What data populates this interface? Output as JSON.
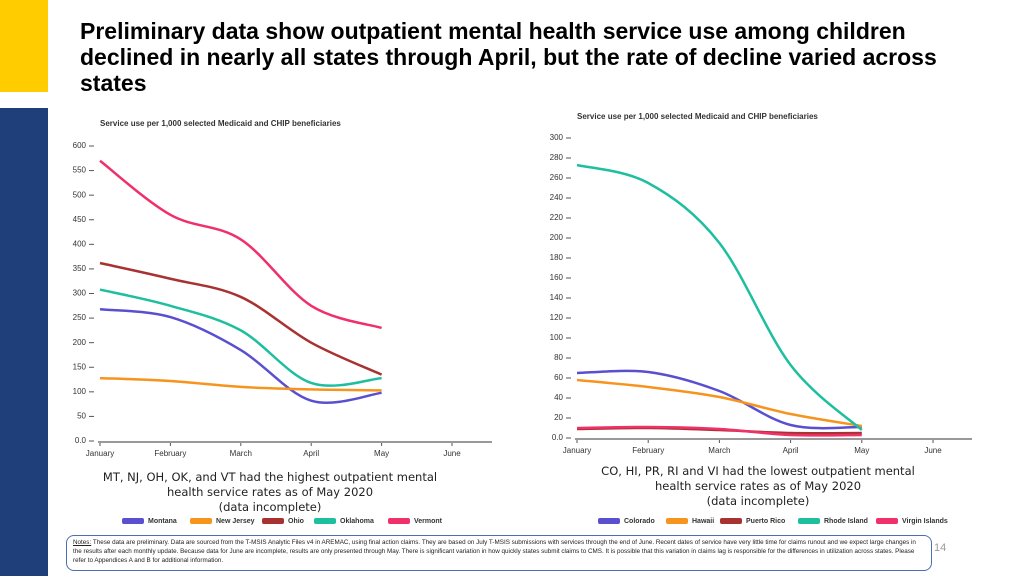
{
  "title": "Preliminary data show outpatient mental health service use among children declined in nearly all states through April, but the rate of decline varied across states",
  "notes_label": "Notes:",
  "notes": "These data are preliminary. Data are sourced from the T-MSIS Analytic Files v4 in AREMAC, using final action claims. They are based on July T-MSIS submissions with services through the end of June. Recent dates of service have very little time for claims runout and we expect large changes in the results after each monthly update. Because data for June are incomplete, results are only presented through May. There is significant variation in how quickly states submit claims to CMS. It is possible that this variation in claims lag is responsible for the differences in utilization across states. Please refer to Appendices A and B for additional information.",
  "page_number": "14",
  "chart_data": [
    {
      "type": "line",
      "title": "Service use per 1,000 selected Medicaid and CHIP beneficiaries",
      "caption": [
        "MT, NJ, OH, OK, and VT had the highest outpatient mental",
        "health service rates as of May 2020",
        "(data incomplete)"
      ],
      "categories": [
        "January",
        "February",
        "March",
        "April",
        "May",
        "June"
      ],
      "ylim": [
        0,
        600
      ],
      "yticks": [
        {
          "value": 0,
          "label": "0.0"
        },
        50,
        100,
        150,
        200,
        250,
        300,
        350,
        400,
        450,
        500,
        550,
        600
      ],
      "series": [
        {
          "name": "Montana",
          "color": "#5a4fcf",
          "values": [
            268,
            252,
            185,
            82,
            98,
            null
          ]
        },
        {
          "name": "New Jersey",
          "color": "#f7941d",
          "values": [
            128,
            122,
            110,
            105,
            103,
            null
          ]
        },
        {
          "name": "Ohio",
          "color": "#a83232",
          "values": [
            362,
            330,
            293,
            200,
            135,
            null
          ]
        },
        {
          "name": "Oklahoma",
          "color": "#1dbf9f",
          "values": [
            308,
            275,
            225,
            118,
            128,
            null
          ]
        },
        {
          "name": "Vermont",
          "color": "#f0306a",
          "values": [
            570,
            460,
            410,
            275,
            230,
            null
          ]
        }
      ]
    },
    {
      "type": "line",
      "title": "Service use per 1,000 selected Medicaid and CHIP beneficiaries",
      "caption": [
        "CO, HI, PR, RI and VI had the lowest outpatient mental",
        "health service rates as of May 2020",
        "(data incomplete)"
      ],
      "categories": [
        "January",
        "February",
        "March",
        "April",
        "May",
        "June"
      ],
      "ylim": [
        0,
        300
      ],
      "yticks": [
        {
          "value": 0,
          "label": "0.0"
        },
        20,
        40,
        60,
        80,
        100,
        120,
        140,
        160,
        180,
        200,
        220,
        240,
        260,
        280,
        300
      ],
      "series": [
        {
          "name": "Colorado",
          "color": "#5a4fcf",
          "values": [
            65,
            66,
            47,
            13,
            11,
            null
          ]
        },
        {
          "name": "Hawaii",
          "color": "#f7941d",
          "values": [
            58,
            51,
            41,
            24,
            12,
            null
          ]
        },
        {
          "name": "Puerto Rico",
          "color": "#a83232",
          "values": [
            9,
            10,
            8,
            5,
            5,
            null
          ]
        },
        {
          "name": "Rhode Island",
          "color": "#1dbf9f",
          "values": [
            273,
            255,
            195,
            73,
            8,
            null
          ]
        },
        {
          "name": "Virgin Islands",
          "color": "#f0306a",
          "values": [
            10,
            11,
            9,
            3,
            3,
            null
          ]
        }
      ]
    }
  ]
}
